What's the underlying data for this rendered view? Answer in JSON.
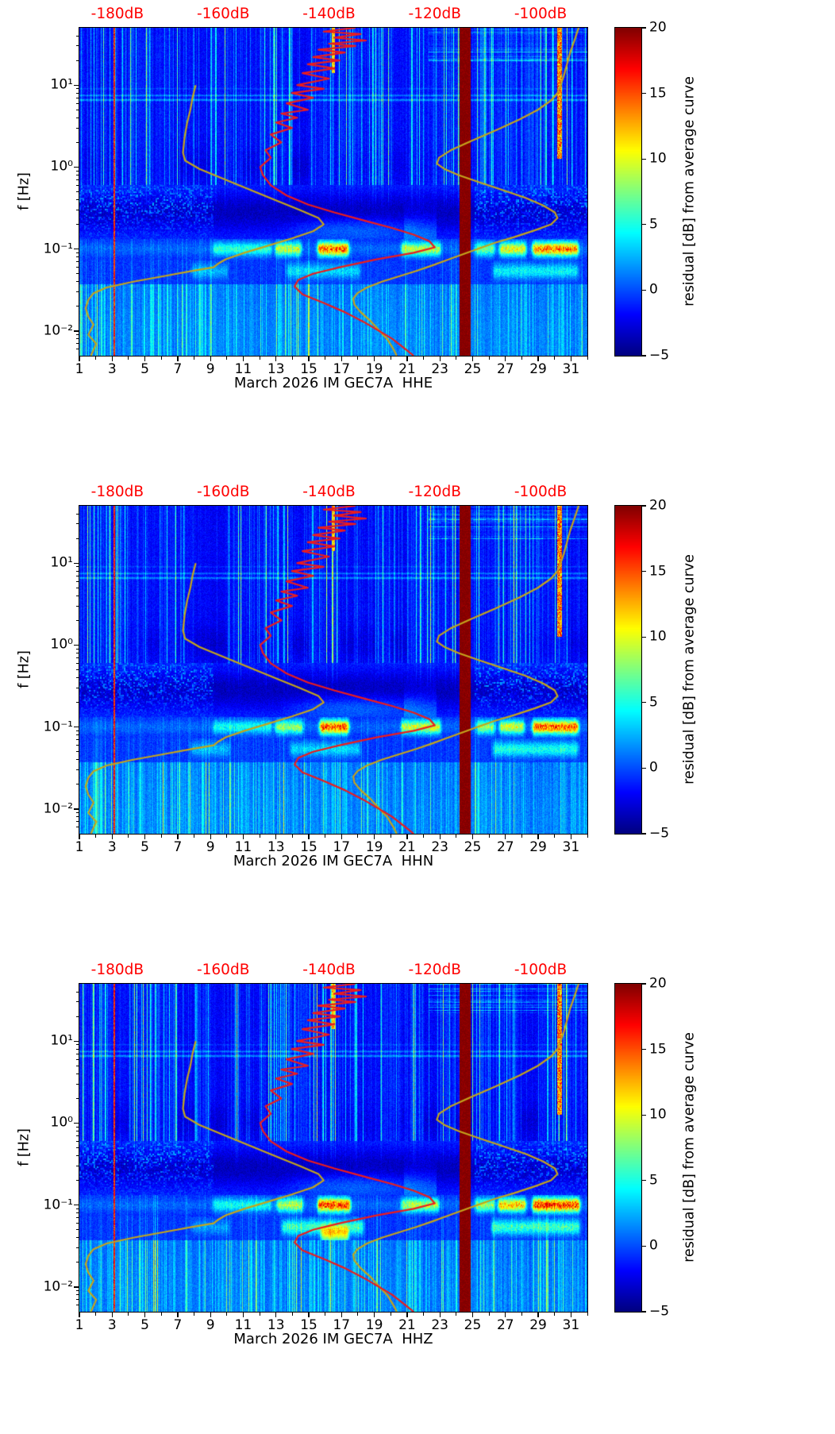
{
  "chart_data": {
    "type": "heatmap",
    "description": "Three stacked seismic PSD-residual spectrograms (one month) for station IM GEC7A, channels HHE, HHN, HHZ. Color shows residual [dB] from average curve (jet colormap, -5 to 20 dB). Overlaid line curves are plotted against the red dB scale on the top axis.",
    "background_color": "#ffffff",
    "panels": [
      {
        "station": "IM GEC7A",
        "channel": "HHE",
        "title": "March 2026 IM GEC7A  HHE",
        "features": {
          "seed": 7,
          "saturated_band": {
            "day_start": 24.18,
            "day_end": 24.88,
            "value_db": 20
          },
          "red_line_day": 3.15,
          "top_red_days": [
            30.32
          ],
          "microseism_hotspots": [
            [
              9.3,
              12.6,
              6
            ],
            [
              13.1,
              14.4,
              10
            ],
            [
              15.7,
              17.3,
              17
            ],
            [
              20.8,
              22.9,
              10
            ],
            [
              25.3,
              26.2,
              8
            ],
            [
              26.8,
              28.1,
              12
            ],
            [
              28.8,
              31.3,
              16
            ]
          ],
          "secondary_band_blobs": [
            [
              8.0,
              9.9,
              4
            ],
            [
              13.8,
              18.0,
              5
            ],
            [
              26.4,
              31.3,
              6
            ]
          ],
          "low_freq_blobs": [],
          "bottom_stripe_gain": 1.0,
          "cloud_day_ranges": [
            [
              1,
              9.2
            ],
            [
              25.1,
              32
            ]
          ]
        }
      },
      {
        "station": "IM GEC7A",
        "channel": "HHN",
        "title": "March 2026 IM GEC7A  HHN",
        "features": {
          "seed": 19,
          "saturated_band": {
            "day_start": 24.18,
            "day_end": 24.88,
            "value_db": 20
          },
          "red_line_day": 3.15,
          "top_red_days": [
            30.32
          ],
          "microseism_hotspots": [
            [
              9.3,
              12.6,
              5
            ],
            [
              13.1,
              14.5,
              9
            ],
            [
              15.8,
              17.3,
              17
            ],
            [
              20.8,
              22.9,
              11
            ],
            [
              25.4,
              26.2,
              9
            ],
            [
              26.8,
              28.0,
              11
            ],
            [
              28.8,
              31.3,
              17
            ]
          ],
          "secondary_band_blobs": [
            [
              8.0,
              10.0,
              4
            ],
            [
              14.0,
              18.0,
              5
            ],
            [
              26.4,
              31.3,
              7
            ]
          ],
          "low_freq_blobs": [],
          "bottom_stripe_gain": 1.12,
          "cloud_day_ranges": [
            [
              1,
              9.2
            ],
            [
              25.1,
              32
            ]
          ]
        }
      },
      {
        "station": "IM GEC7A",
        "channel": "HHZ",
        "title": "March 2026 IM GEC7A  HHZ",
        "features": {
          "seed": 42,
          "saturated_band": {
            "day_start": 24.18,
            "day_end": 24.88,
            "value_db": 20
          },
          "red_line_day": 3.15,
          "top_red_days": [
            30.32
          ],
          "microseism_hotspots": [
            [
              9.3,
              12.6,
              5
            ],
            [
              13.2,
              14.5,
              10
            ],
            [
              15.7,
              17.4,
              18
            ],
            [
              20.8,
              22.8,
              10
            ],
            [
              25.3,
              26.2,
              9
            ],
            [
              26.7,
              28.1,
              14
            ],
            [
              28.8,
              31.4,
              18
            ]
          ],
          "secondary_band_blobs": [
            [
              13.5,
              18.2,
              8
            ],
            [
              26.3,
              31.4,
              8
            ],
            [
              8.0,
              10.0,
              3
            ]
          ],
          "low_freq_blobs": [
            [
              15.9,
              17.3,
              9
            ]
          ],
          "bottom_stripe_gain": 1.35,
          "cloud_day_ranges": [
            [
              1,
              9.2
            ],
            [
              25.1,
              32
            ]
          ]
        }
      }
    ],
    "x_axis": {
      "tick_labels": [
        "1",
        "3",
        "5",
        "7",
        "9",
        "11",
        "13",
        "15",
        "17",
        "19",
        "21",
        "23",
        "25",
        "27",
        "29",
        "31"
      ],
      "tick_values_day": [
        1,
        3,
        5,
        7,
        9,
        11,
        13,
        15,
        17,
        19,
        21,
        23,
        25,
        27,
        29,
        31
      ],
      "day_range": [
        1,
        32
      ]
    },
    "y_axis": {
      "label": "f [Hz]",
      "tick_labels": [
        "10¹",
        "10⁰",
        "10⁻¹",
        "10⁻²"
      ],
      "tick_values_hz": [
        10,
        1,
        0.1,
        0.01
      ],
      "freq_range_hz": [
        0.005,
        50
      ],
      "scale": "log"
    },
    "top_axis": {
      "tick_labels": [
        "-180dB",
        "-160dB",
        "-140dB",
        "-120dB",
        "-100dB"
      ],
      "values_db": [
        -180,
        -160,
        -140,
        -120,
        -100
      ],
      "color": "#ff0000",
      "db_to_day": {
        "dB_ref": -180,
        "day_ref": 3.32,
        "day_per_dB": 0.3228
      }
    },
    "colorbar": {
      "label": "residual [dB] from average curve",
      "tick_labels": [
        "20",
        "15",
        "10",
        "5",
        "0",
        "−5"
      ],
      "tick_values": [
        20,
        15,
        10,
        5,
        0,
        -5
      ],
      "vmin": -5,
      "vmax": 20,
      "colormap": "jet"
    },
    "elevated_noise_days": [
      2,
      4,
      6,
      10,
      12,
      13,
      15,
      16,
      19,
      21,
      23,
      25,
      26,
      27,
      30
    ],
    "overlay_curves": {
      "station_average_psd": {
        "color": "#ed1c1c",
        "maps_to": "top_axis dB scale",
        "points_freq_hz_db": [
          [
            50,
            -135
          ],
          [
            45,
            -141
          ],
          [
            42,
            -134
          ],
          [
            38,
            -139
          ],
          [
            35,
            -133
          ],
          [
            32,
            -140
          ],
          [
            30,
            -135
          ],
          [
            27,
            -142
          ],
          [
            25,
            -137
          ],
          [
            22,
            -143
          ],
          [
            20,
            -138
          ],
          [
            18,
            -144
          ],
          [
            16,
            -139
          ],
          [
            14,
            -145
          ],
          [
            12,
            -140
          ],
          [
            10,
            -146
          ],
          [
            9,
            -141
          ],
          [
            8,
            -147
          ],
          [
            7,
            -143
          ],
          [
            6,
            -148
          ],
          [
            5,
            -144
          ],
          [
            4.5,
            -149
          ],
          [
            4,
            -146
          ],
          [
            3.5,
            -150
          ],
          [
            3,
            -147
          ],
          [
            2.5,
            -151
          ],
          [
            2,
            -149
          ],
          [
            1.6,
            -152
          ],
          [
            1.3,
            -151
          ],
          [
            1,
            -153
          ],
          [
            0.8,
            -152.5
          ],
          [
            0.6,
            -151
          ],
          [
            0.45,
            -148
          ],
          [
            0.35,
            -144
          ],
          [
            0.28,
            -139
          ],
          [
            0.22,
            -133
          ],
          [
            0.18,
            -128
          ],
          [
            0.15,
            -124
          ],
          [
            0.125,
            -121
          ],
          [
            0.105,
            -120
          ],
          [
            0.09,
            -124
          ],
          [
            0.075,
            -131
          ],
          [
            0.06,
            -138
          ],
          [
            0.05,
            -143
          ],
          [
            0.042,
            -145.8
          ],
          [
            0.035,
            -146.5
          ],
          [
            0.028,
            -145
          ],
          [
            0.022,
            -141
          ],
          [
            0.017,
            -137
          ],
          [
            0.013,
            -133.5
          ],
          [
            0.01,
            -130.5
          ],
          [
            0.008,
            -128
          ],
          [
            0.006,
            -125.5
          ],
          [
            0.005,
            -124
          ]
        ]
      },
      "noise_model_low": {
        "color": "#c4a41c",
        "maps_to": "top_axis dB scale",
        "points_freq_hz_db": [
          [
            10,
            -165.2
          ],
          [
            7,
            -165.8
          ],
          [
            5,
            -166.2
          ],
          [
            3.5,
            -166.8
          ],
          [
            2.3,
            -167.3
          ],
          [
            1.5,
            -167.6
          ],
          [
            1.2,
            -167.2
          ],
          [
            0.95,
            -164.5
          ],
          [
            0.7,
            -159.5
          ],
          [
            0.5,
            -154
          ],
          [
            0.38,
            -149.5
          ],
          [
            0.3,
            -145.5
          ],
          [
            0.24,
            -142
          ],
          [
            0.2,
            -141
          ],
          [
            0.165,
            -143
          ],
          [
            0.135,
            -147
          ],
          [
            0.11,
            -151.5
          ],
          [
            0.09,
            -156
          ],
          [
            0.075,
            -159.5
          ],
          [
            0.066,
            -161
          ],
          [
            0.06,
            -161.8
          ],
          [
            0.054,
            -166
          ],
          [
            0.047,
            -171
          ],
          [
            0.04,
            -177
          ],
          [
            0.034,
            -182
          ],
          [
            0.029,
            -184.5
          ],
          [
            0.024,
            -185.5
          ],
          [
            0.019,
            -186
          ],
          [
            0.015,
            -185.5
          ],
          [
            0.012,
            -184.5
          ],
          [
            0.009,
            -185.5
          ],
          [
            0.007,
            -184
          ],
          [
            0.005,
            -185
          ]
        ]
      },
      "noise_model_high": {
        "color": "#c4a41c",
        "maps_to": "top_axis dB scale",
        "points_freq_hz_db": [
          [
            50,
            -92.8
          ],
          [
            35,
            -93.6
          ],
          [
            25,
            -94.4
          ],
          [
            18,
            -95
          ],
          [
            13,
            -95.6
          ],
          [
            10,
            -96.2
          ],
          [
            8,
            -96.8
          ],
          [
            6.5,
            -98
          ],
          [
            5,
            -100.5
          ],
          [
            3.8,
            -104
          ],
          [
            2.8,
            -108.5
          ],
          [
            2.1,
            -113
          ],
          [
            1.6,
            -117
          ],
          [
            1.3,
            -119.2
          ],
          [
            1.1,
            -119.6
          ],
          [
            0.95,
            -118.2
          ],
          [
            0.8,
            -115.5
          ],
          [
            0.65,
            -111.5
          ],
          [
            0.52,
            -107
          ],
          [
            0.42,
            -102.8
          ],
          [
            0.34,
            -99.5
          ],
          [
            0.28,
            -97.3
          ],
          [
            0.24,
            -96.8
          ],
          [
            0.2,
            -98
          ],
          [
            0.17,
            -101
          ],
          [
            0.14,
            -105
          ],
          [
            0.12,
            -108.5
          ],
          [
            0.1,
            -112
          ],
          [
            0.085,
            -115
          ],
          [
            0.073,
            -117.8
          ],
          [
            0.063,
            -120.5
          ],
          [
            0.054,
            -123.5
          ],
          [
            0.046,
            -127
          ],
          [
            0.04,
            -130
          ],
          [
            0.034,
            -132.8
          ],
          [
            0.029,
            -134.6
          ],
          [
            0.025,
            -135.4
          ],
          [
            0.021,
            -135.2
          ],
          [
            0.017,
            -134
          ],
          [
            0.013,
            -132
          ],
          [
            0.01,
            -130.4
          ],
          [
            0.008,
            -129
          ],
          [
            0.006,
            -127.8
          ],
          [
            0.005,
            -127.2
          ]
        ]
      }
    }
  }
}
